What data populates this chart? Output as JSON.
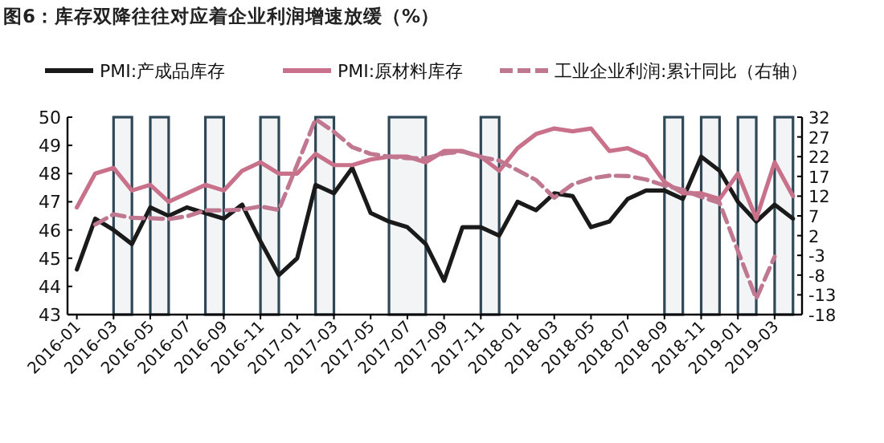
{
  "chart_data": {
    "type": "line",
    "title": "图6：库存双降往往对应着企业利润增速放缓（%）",
    "x": [
      "2016-01",
      "2016-02",
      "2016-03",
      "2016-04",
      "2016-05",
      "2016-06",
      "2016-07",
      "2016-08",
      "2016-09",
      "2016-10",
      "2016-11",
      "2016-12",
      "2017-01",
      "2017-02",
      "2017-03",
      "2017-04",
      "2017-05",
      "2017-06",
      "2017-07",
      "2017-08",
      "2017-09",
      "2017-10",
      "2017-11",
      "2017-12",
      "2018-01",
      "2018-02",
      "2018-03",
      "2018-04",
      "2018-05",
      "2018-06",
      "2018-07",
      "2018-08",
      "2018-09",
      "2018-10",
      "2018-11",
      "2018-12",
      "2019-01",
      "2019-02",
      "2019-03",
      "2019-04"
    ],
    "series": [
      {
        "name": "PMI:产成品库存",
        "color": "#1a1a1a",
        "values": [
          44.6,
          46.4,
          46.0,
          45.5,
          46.8,
          46.5,
          46.8,
          46.6,
          46.4,
          46.9,
          45.6,
          44.4,
          45.0,
          47.6,
          47.3,
          48.2,
          46.6,
          46.3,
          46.1,
          45.5,
          44.2,
          46.1,
          46.1,
          45.8,
          47.0,
          46.7,
          47.3,
          47.2,
          46.1,
          46.3,
          47.1,
          47.4,
          47.4,
          47.1,
          48.6,
          48.1,
          47.0,
          46.3,
          46.9,
          46.4
        ]
      },
      {
        "name": "PMI:原材料库存",
        "color": "#c9718a",
        "values": [
          46.8,
          48.0,
          48.2,
          47.4,
          47.6,
          47.0,
          47.3,
          47.6,
          47.4,
          48.1,
          48.4,
          48.0,
          48.0,
          48.7,
          48.3,
          48.3,
          48.5,
          48.6,
          48.6,
          48.4,
          48.8,
          48.8,
          48.6,
          48.1,
          48.9,
          49.4,
          49.6,
          49.5,
          49.6,
          48.8,
          48.9,
          48.6,
          47.7,
          47.3,
          47.3,
          47.1,
          48.0,
          46.4,
          48.4,
          47.2
        ]
      },
      {
        "name": "工业企业利润:累计同比（右轴）",
        "color": "#c07890",
        "axis": "y2",
        "line_style": "dashed",
        "values": [
          null,
          4.8,
          7.4,
          6.5,
          6.4,
          6.2,
          6.9,
          8.4,
          8.4,
          8.6,
          9.4,
          8.5,
          null,
          31.5,
          28.3,
          24.4,
          22.7,
          22.0,
          21.6,
          21.6,
          22.8,
          23.3,
          21.9,
          21.0,
          null,
          16.1,
          11.6,
          15.0,
          16.5,
          17.2,
          17.1,
          16.2,
          14.7,
          13.6,
          11.8,
          10.3,
          null,
          -14.0,
          -3.3,
          null
        ]
      }
    ],
    "xlim": [
      "2015-12-16",
      "2019-04-16"
    ],
    "xticks": [
      "2016-01",
      "2016-03",
      "2016-05",
      "2016-07",
      "2016-09",
      "2016-11",
      "2017-01",
      "2017-03",
      "2017-05",
      "2017-07",
      "2017-09",
      "2017-11",
      "2018-01",
      "2018-03",
      "2018-05",
      "2018-07",
      "2018-09",
      "2018-11",
      "2019-01",
      "2019-03"
    ],
    "ylim": [
      43,
      50
    ],
    "yticks": [
      43,
      44,
      45,
      46,
      47,
      48,
      49,
      50
    ],
    "y2lim": [
      -18,
      32
    ],
    "y2ticks": [
      -18,
      -13,
      -8,
      -3,
      2,
      7,
      12,
      17,
      22,
      27,
      32
    ],
    "bands": [
      {
        "axis": "x",
        "from": "2016-03",
        "to": "2016-04",
        "color": "#2f4858"
      },
      {
        "axis": "x",
        "from": "2016-05",
        "to": "2016-06",
        "color": "#2f4858"
      },
      {
        "axis": "x",
        "from": "2016-08",
        "to": "2016-09",
        "color": "#2f4858"
      },
      {
        "axis": "x",
        "from": "2016-11",
        "to": "2016-12",
        "color": "#2f4858"
      },
      {
        "axis": "x",
        "from": "2017-02",
        "to": "2017-03",
        "color": "#2f4858"
      },
      {
        "axis": "x",
        "from": "2017-06",
        "to": "2017-08",
        "color": "#2f4858"
      },
      {
        "axis": "x",
        "from": "2017-11",
        "to": "2017-12",
        "color": "#2f4858"
      },
      {
        "axis": "x",
        "from": "2018-09",
        "to": "2018-10",
        "color": "#2f4858"
      },
      {
        "axis": "x",
        "from": "2018-11",
        "to": "2018-12",
        "color": "#2f4858"
      },
      {
        "axis": "x",
        "from": "2019-01",
        "to": "2019-02",
        "color": "#2f4858"
      },
      {
        "axis": "x",
        "from": "2019-03",
        "to": "2019-04",
        "color": "#2f4858"
      }
    ],
    "legend": "top",
    "grid": false,
    "marker": "none"
  }
}
